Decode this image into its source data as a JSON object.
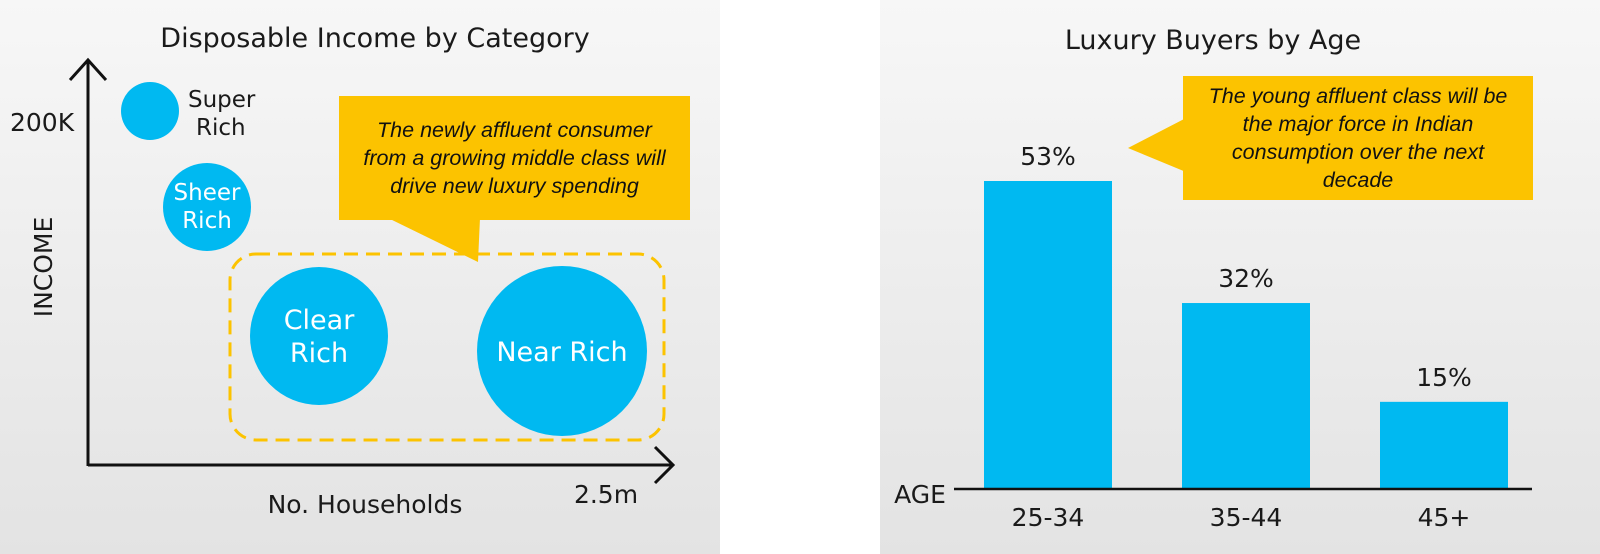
{
  "chart_data": [
    {
      "type": "scatter",
      "title": "Disposable Income by Category",
      "xlabel": "No. Households",
      "ylabel": "INCOME",
      "x_tick_label": "2.5m",
      "y_tick_label": "200K",
      "series": [
        {
          "name": "Super Rich",
          "lines": [
            "Super",
            "Rich"
          ]
        },
        {
          "name": "Sheer Rich",
          "lines": [
            "Sheer",
            "Rich"
          ]
        },
        {
          "name": "Clear Rich",
          "lines": [
            "Clear",
            "Rich"
          ]
        },
        {
          "name": "Near Rich",
          "lines": [
            "Near Rich"
          ]
        }
      ],
      "annotation": "The newly affluent consumer from a growing middle class will drive new luxury spending",
      "annotation_lines": [
        "The newly affluent consumer",
        "from a growing middle class will",
        "drive new luxury spending"
      ],
      "highlight_color": "#fcc300",
      "bubble_color": "#00b9f1"
    },
    {
      "type": "bar",
      "title": "Luxury Buyers by Age",
      "xlabel": "AGE",
      "categories": [
        "25-34",
        "35-44",
        "45+"
      ],
      "values": [
        53,
        32,
        15
      ],
      "value_labels": [
        "53%",
        "32%",
        "15%"
      ],
      "annotation": "The young affluent class will be the major force in Indian consumption over the next decade",
      "annotation_lines": [
        "The young affluent class will be",
        "the major force in Indian",
        "consumption over the next",
        "decade"
      ],
      "bar_color": "#00b9f1",
      "highlight_color": "#fcc300"
    }
  ]
}
